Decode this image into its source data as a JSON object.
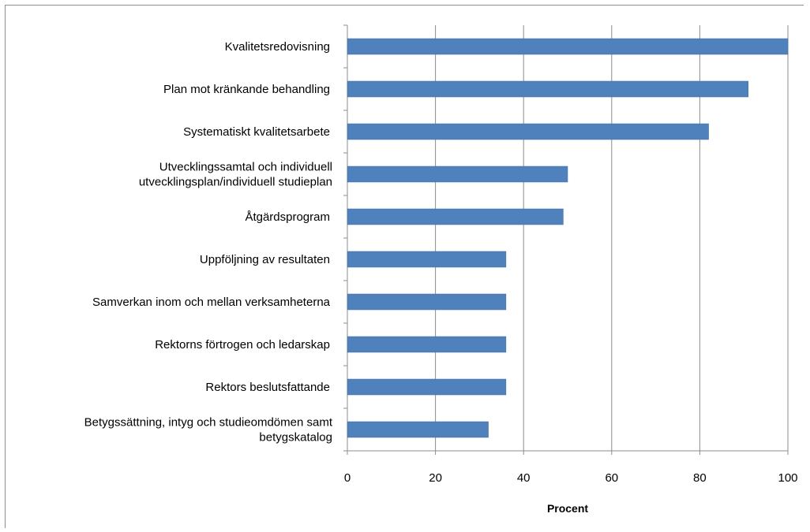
{
  "chart_data": {
    "type": "bar",
    "orientation": "horizontal",
    "categories": [
      [
        "Kvalitetsredovisning"
      ],
      [
        "Plan mot  kränkande behandling"
      ],
      [
        "Systematiskt  kvalitetsarbete"
      ],
      [
        "Utvecklingssamtal  och individuell",
        "utvecklingsplan/individuell studieplan"
      ],
      [
        "Åtgärdsprogram"
      ],
      [
        "Uppföljning av resultaten"
      ],
      [
        "Samverkan inom och mellan verksamheterna"
      ],
      [
        "Rektorns förtrogen och ledarskap"
      ],
      [
        "Rektors beslutsfattande"
      ],
      [
        "Betygssättning,  intyg och studieomdömen samt",
        "betygskatalog"
      ]
    ],
    "values": [
      100,
      91,
      82,
      50,
      49,
      36,
      36,
      36,
      36,
      32
    ],
    "xlim": [
      0,
      100
    ],
    "xticks": [
      "0",
      "20",
      "40",
      "60",
      "80",
      "100"
    ],
    "xlabel": "Procent",
    "ylabel": "",
    "title": "",
    "grid": "vertical",
    "legend": "none",
    "bar_color": "#4f81bd",
    "bar_edge_color": "#3a6ea5",
    "gridline_color": "#8c8c8c"
  }
}
